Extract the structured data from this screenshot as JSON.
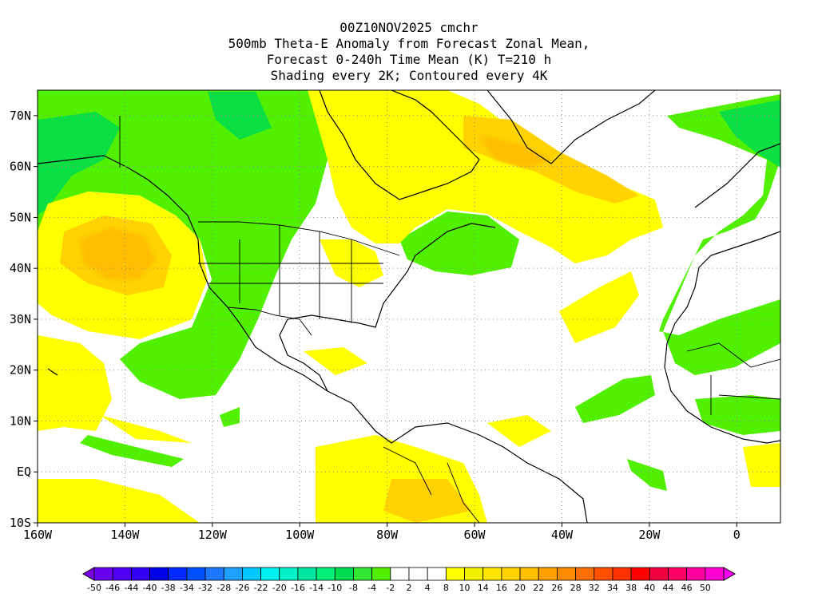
{
  "title": {
    "line1": "00Z10NOV2025 cmchr",
    "line2": "500mb Theta-E Anomaly from Forecast Zonal Mean,",
    "line3": "Forecast 0-240h Time Mean (K) T=210 h",
    "line4": "Shading every 2K; Contoured every 4K"
  },
  "map": {
    "lon_range": [
      -160,
      10
    ],
    "lat_range": [
      -10,
      75
    ],
    "lat_ticks": [
      {
        "value": 70,
        "label": "70N"
      },
      {
        "value": 60,
        "label": "60N"
      },
      {
        "value": 50,
        "label": "50N"
      },
      {
        "value": 40,
        "label": "40N"
      },
      {
        "value": 30,
        "label": "30N"
      },
      {
        "value": 20,
        "label": "20N"
      },
      {
        "value": 10,
        "label": "10N"
      },
      {
        "value": 0,
        "label": "EQ"
      },
      {
        "value": -10,
        "label": "10S"
      }
    ],
    "lon_ticks": [
      {
        "value": -160,
        "label": "160W"
      },
      {
        "value": -140,
        "label": "140W"
      },
      {
        "value": -120,
        "label": "120W"
      },
      {
        "value": -100,
        "label": "100W"
      },
      {
        "value": -80,
        "label": "80W"
      },
      {
        "value": -60,
        "label": "60W"
      },
      {
        "value": -40,
        "label": "40W"
      },
      {
        "value": -20,
        "label": "20W"
      },
      {
        "value": 0,
        "label": "0"
      }
    ],
    "gridlines": "dotted"
  },
  "colorbar": {
    "colors": [
      "#7a00e6",
      "#6a00f0",
      "#5000f5",
      "#3200f5",
      "#0000e6",
      "#0028ff",
      "#0050ff",
      "#1e78ff",
      "#1ea0ff",
      "#00c8ff",
      "#00f0f0",
      "#00f0c8",
      "#00e6a0",
      "#00f078",
      "#00dc50",
      "#32e632",
      "#50f000",
      "#ffffff",
      "#ffffff",
      "#ffffff",
      "#ffff00",
      "#f0f000",
      "#ffe600",
      "#ffd200",
      "#ffbe00",
      "#ffa000",
      "#ff8c00",
      "#ff6e00",
      "#ff5000",
      "#ff3200",
      "#ff0000",
      "#f0003c",
      "#ff0064",
      "#ff00a0",
      "#ff00d2",
      "#ff00ff"
    ],
    "labels": [
      "-50",
      "-46",
      "-44",
      "-40",
      "-38",
      "-34",
      "-32",
      "-28",
      "-26",
      "-22",
      "-20",
      "-16",
      "-14",
      "-10",
      "-8",
      "-4",
      "-2",
      "2",
      "4",
      "8",
      "10",
      "14",
      "16",
      "20",
      "22",
      "26",
      "28",
      "32",
      "34",
      "38",
      "40",
      "44",
      "46",
      "50"
    ]
  }
}
